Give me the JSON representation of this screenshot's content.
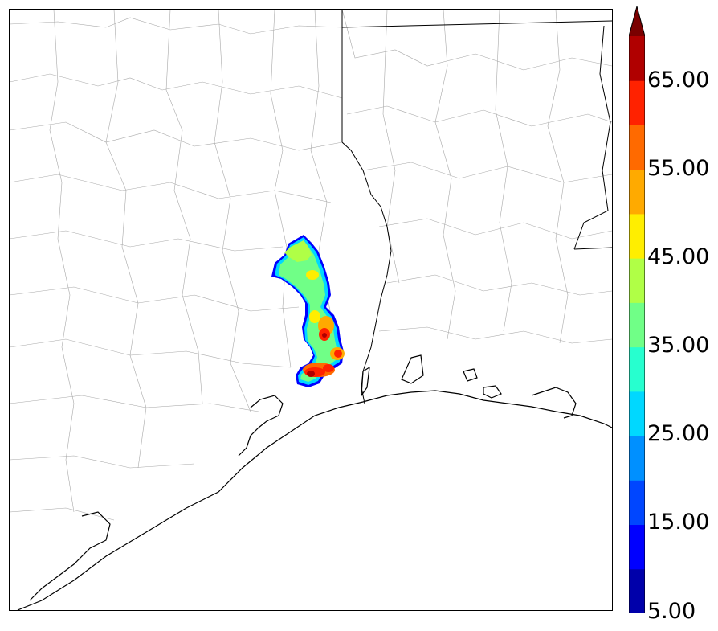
{
  "map": {
    "description_type": "radar reflectivity field over Gulf Coast counties",
    "state_line_color": "#000000",
    "county_line_color": "#9a9a9a"
  },
  "colorbar": {
    "extend": "max",
    "labels": [
      "65.00",
      "55.00",
      "45.00",
      "35.00",
      "25.00",
      "15.00",
      "5.00"
    ],
    "levels": [
      5,
      10,
      15,
      20,
      25,
      30,
      35,
      40,
      45,
      50,
      55,
      60,
      65,
      70
    ],
    "colors": [
      "#0000aa",
      "#0000ff",
      "#0046ff",
      "#0090ff",
      "#00d8ff",
      "#27ffcf",
      "#70ff87",
      "#b0ff46",
      "#ffee00",
      "#ffaa00",
      "#ff6a00",
      "#ff2200",
      "#b00000",
      "#7a0000"
    ]
  }
}
